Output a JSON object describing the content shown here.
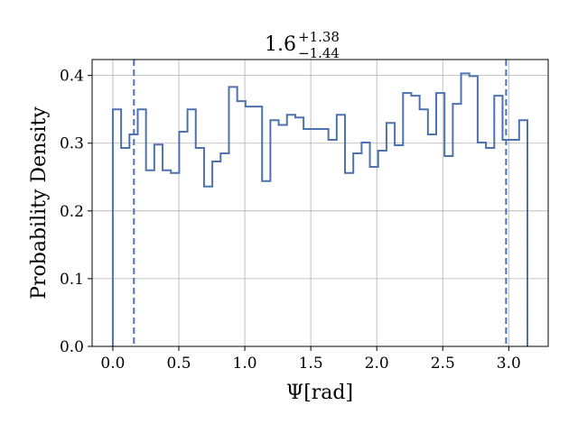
{
  "chart_data": {
    "type": "histogram",
    "title": {
      "value": "1.6",
      "upper": "+1.38",
      "lower": "−1.44"
    },
    "xlabel": "Ψ[rad]",
    "ylabel": "Probability Density",
    "xlim": [
      -0.157,
      3.299
    ],
    "ylim": [
      0.0,
      0.4235
    ],
    "xticks": [
      0.0,
      0.5,
      1.0,
      1.5,
      2.0,
      2.5,
      3.0
    ],
    "xtick_labels": [
      "0.0",
      "0.5",
      "1.0",
      "1.5",
      "2.0",
      "2.5",
      "3.0"
    ],
    "yticks": [
      0.0,
      0.1,
      0.2,
      0.3,
      0.4
    ],
    "ytick_labels": [
      "0.0",
      "0.1",
      "0.2",
      "0.3",
      "0.4"
    ],
    "grid": true,
    "bin_edges": [
      0.0,
      0.0628,
      0.1257,
      0.1885,
      0.2513,
      0.3142,
      0.377,
      0.4398,
      0.5027,
      0.5655,
      0.6283,
      0.6912,
      0.754,
      0.8168,
      0.8796,
      0.9425,
      1.0053,
      1.0681,
      1.131,
      1.1938,
      1.2566,
      1.3195,
      1.3823,
      1.4451,
      1.508,
      1.5708,
      1.6336,
      1.6965,
      1.7593,
      1.8221,
      1.885,
      1.9478,
      2.0106,
      2.0735,
      2.1363,
      2.1991,
      2.2619,
      2.3248,
      2.3876,
      2.4504,
      2.5133,
      2.5761,
      2.6389,
      2.7018,
      2.7646,
      2.8274,
      2.8903,
      2.9531,
      3.0159,
      3.0788,
      3.1416
    ],
    "density": [
      0.35,
      0.293,
      0.313,
      0.35,
      0.26,
      0.298,
      0.26,
      0.256,
      0.317,
      0.35,
      0.293,
      0.236,
      0.273,
      0.285,
      0.383,
      0.362,
      0.354,
      0.354,
      0.244,
      0.334,
      0.327,
      0.342,
      0.338,
      0.321,
      0.321,
      0.321,
      0.305,
      0.342,
      0.256,
      0.285,
      0.301,
      0.265,
      0.289,
      0.33,
      0.297,
      0.374,
      0.37,
      0.35,
      0.313,
      0.374,
      0.281,
      0.358,
      0.403,
      0.399,
      0.301,
      0.293,
      0.37,
      0.305,
      0.305,
      0.334
    ],
    "quantile_lines": [
      0.16,
      2.98
    ],
    "colors": {
      "line": "#4c72b0",
      "grid": "#b0b0b0",
      "axis": "#000000"
    }
  }
}
